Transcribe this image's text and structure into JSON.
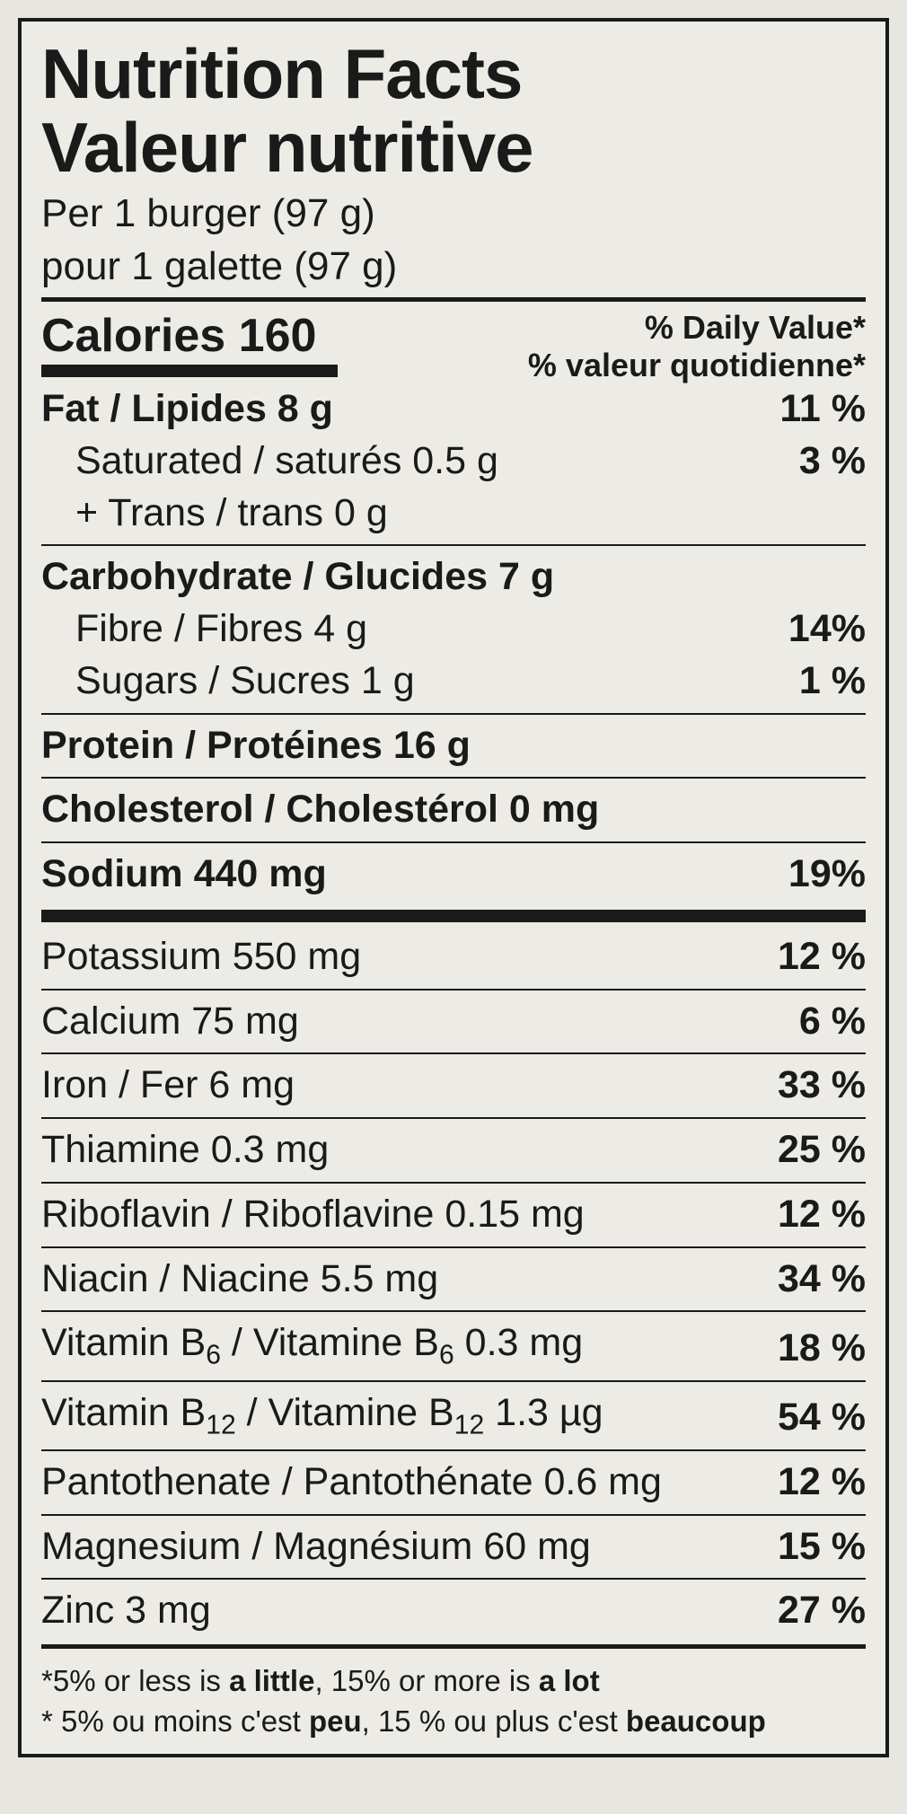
{
  "title_en": "Nutrition Facts",
  "title_fr": "Valeur nutritive",
  "serving_en": "Per 1 burger (97 g)",
  "serving_fr": "pour 1 galette (97 g)",
  "calories_label": "Calories",
  "calories_value": "160",
  "dv_head_en": "% Daily Value*",
  "dv_head_fr": "% valeur quotidienne*",
  "fat": {
    "label": "Fat / Lipides 8 g",
    "dv": "11 %"
  },
  "sat": {
    "label": "Saturated / saturés 0.5 g",
    "dv": "3 %"
  },
  "trans": {
    "label": "+ Trans / trans 0 g"
  },
  "carb": {
    "label": "Carbohydrate / Glucides 7 g"
  },
  "fibre": {
    "label": "Fibre / Fibres 4 g",
    "dv": "14%"
  },
  "sugars": {
    "label": "Sugars / Sucres 1 g",
    "dv": "1 %"
  },
  "protein": {
    "label": "Protein / Protéines 16 g"
  },
  "chol": {
    "label": "Cholesterol / Cholestérol 0 mg"
  },
  "sodium": {
    "label": "Sodium 440 mg",
    "dv": "19%"
  },
  "potassium": {
    "label": "Potassium 550 mg",
    "dv": "12 %"
  },
  "calcium": {
    "label": "Calcium 75 mg",
    "dv": "6 %"
  },
  "iron": {
    "label": "Iron / Fer 6 mg",
    "dv": "33 %"
  },
  "thiamine": {
    "label": "Thiamine 0.3 mg",
    "dv": "25 %"
  },
  "riboflavin": {
    "label": "Riboflavin / Riboflavine 0.15 mg",
    "dv": "12 %"
  },
  "niacin": {
    "label": "Niacin / Niacine 5.5 mg",
    "dv": "34 %"
  },
  "b6": {
    "pre": "Vitamin B",
    "sub": "6",
    "mid": " / Vitamine B",
    "post": " 0.3 mg",
    "dv": "18 %"
  },
  "b12": {
    "pre": "Vitamin B",
    "sub": "12",
    "mid": " / Vitamine B",
    "post": " 1.3 µg",
    "dv": "54 %"
  },
  "panto": {
    "label": "Pantothenate / Pantothénate 0.6 mg",
    "dv": "12 %"
  },
  "magnesium": {
    "label": "Magnesium / Magnésium 60 mg",
    "dv": "15 %"
  },
  "zinc": {
    "label": "Zinc 3 mg",
    "dv": "27 %"
  },
  "foot_en_a": "*5% or less is ",
  "foot_en_b": "a little",
  "foot_en_c": ", 15% or more is ",
  "foot_en_d": "a lot",
  "foot_fr_a": "* 5% ou moins c'est ",
  "foot_fr_b": "peu",
  "foot_fr_c": ", 15 % ou plus c'est ",
  "foot_fr_d": "beaucoup",
  "colors": {
    "border": "#1a1a1a",
    "bg": "#ecebe6",
    "text": "#1a1a1a"
  }
}
